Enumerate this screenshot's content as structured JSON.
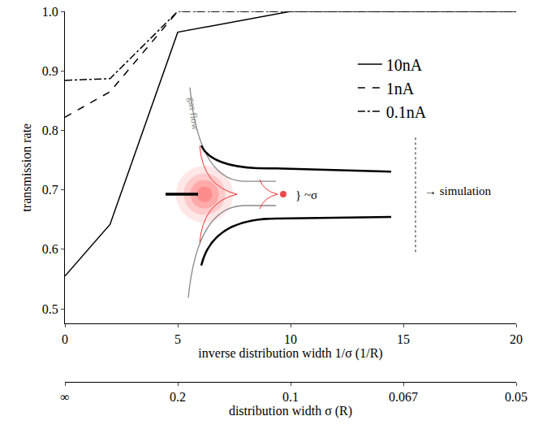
{
  "chart_data": {
    "type": "line",
    "x": [
      0,
      2,
      5,
      10,
      20
    ],
    "series": [
      {
        "name": "10nA",
        "color": "#000000",
        "line_style": "solid",
        "values": [
          0.555,
          0.642,
          0.965,
          1.0,
          1.0
        ]
      },
      {
        "name": "1nA",
        "color": "#000000",
        "line_style": "dash",
        "values": [
          0.822,
          0.865,
          1.0,
          1.0,
          1.0
        ]
      },
      {
        "name": "0.1nA",
        "color": "#000000",
        "line_style": "dashdot",
        "values": [
          0.884,
          0.887,
          1.0,
          1.0,
          1.0
        ]
      }
    ],
    "xlabel": "inverse distribution width 1/σ (1/R)",
    "ylabel": "transmission rate",
    "xlim": [
      0,
      20
    ],
    "xticks": [
      0,
      5,
      10,
      15,
      20
    ],
    "ylim": [
      0.475,
      1.0
    ],
    "yticks": [
      0.5,
      0.6,
      0.7,
      0.8,
      0.9,
      {
        "value": 1.0,
        "label": "1.0"
      }
    ],
    "x2label": "distribution width σ (R)",
    "x2lim": [
      0,
      20
    ],
    "x2ticks": [
      {
        "value": 0,
        "label": "∞"
      },
      {
        "value": 5,
        "label": "0.2"
      },
      {
        "value": 10,
        "label": "0.1"
      },
      {
        "value": 15,
        "label": "0.067"
      },
      {
        "value": 20,
        "label": "0.05"
      }
    ],
    "annotations": [
      "gas flow",
      "} ~σ",
      "→ simulation"
    ],
    "grid": false,
    "legend": "upper right"
  }
}
